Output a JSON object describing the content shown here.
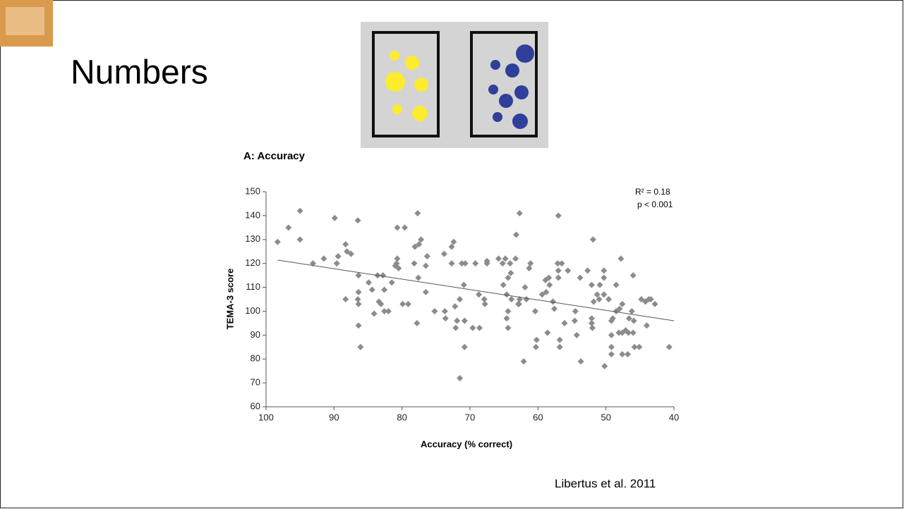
{
  "slide_title": "Numbers",
  "citation": "Libertus et al. 2011",
  "chart_data": {
    "type": "scatter",
    "title": "A: Accuracy",
    "x_label": "Accuracy (% correct)",
    "y_label": "TEMA-3 score",
    "annotations": [
      "R² = 0.18",
      "p < 0.001"
    ],
    "xlim": [
      100,
      40
    ],
    "xticks": [
      100,
      90,
      80,
      70,
      60,
      50,
      40
    ],
    "ylim": [
      60,
      150
    ],
    "yticks": [
      60,
      70,
      80,
      90,
      100,
      110,
      120,
      130,
      140,
      150
    ],
    "color": "#8c8c8c",
    "x": [
      98.3,
      96.7,
      95,
      95,
      93.1,
      91.5,
      89.9,
      89.6,
      89.4,
      88.3,
      88.1,
      87.5,
      88.3,
      86.5,
      86.4,
      86.4,
      86.5,
      86.4,
      86.4,
      86.1,
      84.9,
      84.4,
      84.1,
      83.6,
      83.4,
      83.1,
      82.8,
      82.6,
      82.6,
      82,
      81.5,
      81,
      80.8,
      80.7,
      80.7,
      80.5,
      79.6,
      79.9,
      79.1,
      78.2,
      78.1,
      77.8,
      77.7,
      77.6,
      77.2,
      77.5,
      76.5,
      76.3,
      76.5,
      75.2,
      73.8,
      73.7,
      73.6,
      72.7,
      72.7,
      72.4,
      72.2,
      72.1,
      71.9,
      71.5,
      71.2,
      71.5,
      70.9,
      70.8,
      70.8,
      70.7,
      69.6,
      69.2,
      68.6,
      68.7,
      67.9,
      67.8,
      67.5,
      67.5,
      65.8,
      65.2,
      65.1,
      64.8,
      64.6,
      64.4,
      64.4,
      64.6,
      64.4,
      64.1,
      64,
      63.9,
      63.3,
      62.9,
      62.7,
      62.8,
      62.7,
      63.2,
      62.1,
      61.9,
      61.7,
      61.3,
      61.1,
      60.4,
      60.2,
      60.3,
      59.4,
      58.9,
      58.8,
      58.6,
      58.4,
      58.3,
      57.8,
      57.6,
      57.1,
      57,
      57,
      57,
      56.8,
      56.8,
      56.5,
      56.1,
      55.6,
      54.6,
      54.5,
      54.3,
      53.8,
      53.7,
      52.7,
      52.1,
      52.1,
      52.1,
      52,
      51.9,
      51.8,
      51.3,
      51,
      50.9,
      50.3,
      50.3,
      50.3,
      50.2,
      49.6,
      49.2,
      49.2,
      49.2,
      49.2,
      49,
      48.5,
      48.5,
      48.1,
      48,
      47.8,
      47.6,
      47.6,
      47.6,
      47.1,
      46.8,
      46.7,
      46.6,
      46.2,
      46,
      45.9,
      46,
      45.8,
      45.1,
      44.8,
      44.2,
      44,
      43.7,
      43.4,
      42.8,
      40.7
    ],
    "values": [
      129,
      135,
      142,
      130,
      120,
      122,
      139,
      120,
      123,
      128,
      125,
      124,
      105,
      138,
      115,
      108,
      105,
      103,
      94,
      85,
      112,
      109,
      99,
      115,
      104,
      103,
      115,
      109,
      100,
      100,
      112,
      119,
      120,
      122,
      135,
      118,
      135,
      103,
      103,
      120,
      127,
      95,
      141,
      114,
      130,
      128,
      119,
      123,
      108,
      100,
      124,
      100,
      97,
      120,
      127,
      129,
      102,
      93,
      96,
      72,
      120,
      105,
      111,
      96,
      85,
      120,
      93,
      120,
      93,
      107,
      105,
      103,
      121,
      120,
      122,
      120,
      111,
      122,
      107,
      114,
      100,
      97,
      93,
      120,
      116,
      105,
      122,
      103,
      105,
      103,
      141,
      132,
      79,
      110,
      105,
      118,
      120,
      100,
      88,
      85,
      107,
      113,
      108,
      91,
      114,
      111,
      104,
      101,
      120,
      140,
      117,
      114,
      88,
      85,
      120,
      95,
      117,
      96,
      100,
      90,
      114,
      79,
      117,
      111,
      97,
      95,
      93,
      130,
      104,
      107,
      105,
      111,
      117,
      114,
      107,
      77,
      105,
      96,
      90,
      85,
      82,
      97,
      100,
      111,
      91,
      101,
      122,
      103,
      91,
      82,
      92,
      82,
      91,
      97,
      100,
      115,
      96,
      91,
      85,
      85,
      105,
      104,
      94,
      105,
      105,
      103,
      85
    ],
    "trendline": {
      "x": [
        98.3,
        40
      ],
      "y": [
        121.4,
        96
      ]
    }
  }
}
